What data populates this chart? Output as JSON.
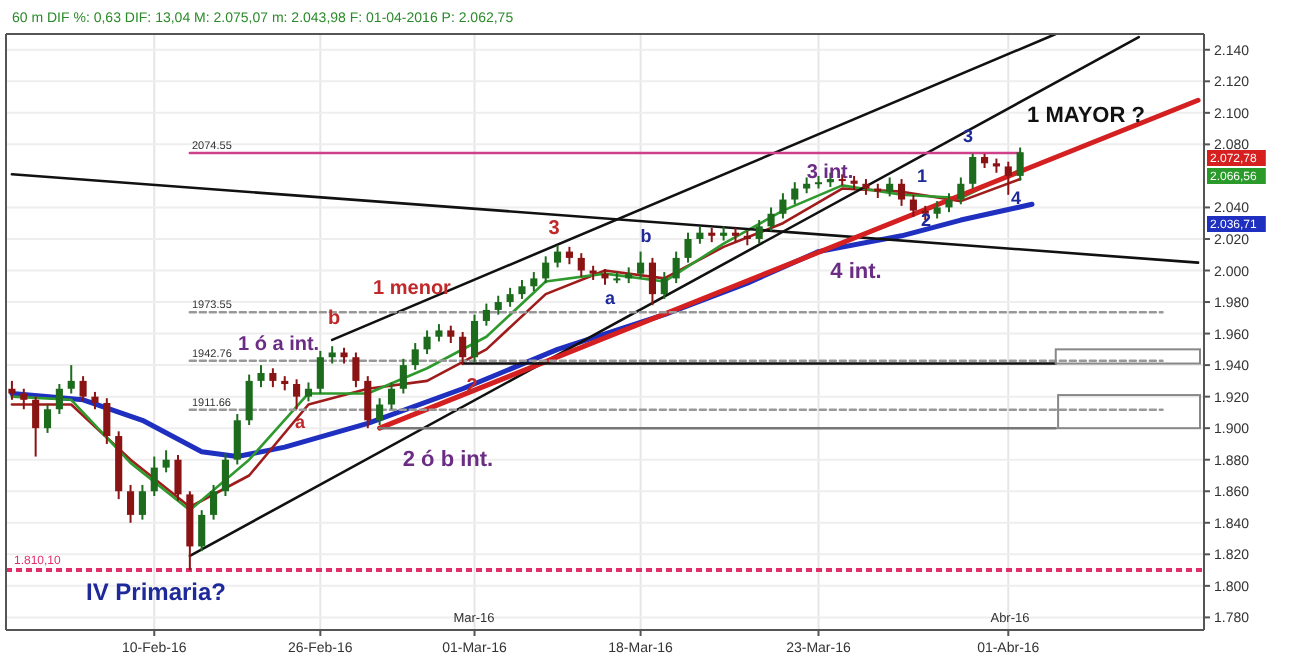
{
  "chart_data": {
    "type": "candlestick",
    "subtitle": "60 m  DIF %: 0,63  DIF: 13,04  M: 2.075,07  m: 2.043,98  F: 01-04-2016  P: 2.062,75",
    "categories": [
      null,
      null,
      null,
      null,
      null,
      null,
      null,
      null,
      null,
      null,
      null,
      null,
      "10-Feb-16",
      null,
      null,
      null,
      null,
      null,
      null,
      null,
      null,
      null,
      null,
      null,
      null,
      null,
      "26-Feb-16",
      null,
      null,
      null,
      null,
      null,
      null,
      null,
      null,
      null,
      null,
      null,
      null,
      "01-Mar-16",
      null,
      null,
      null,
      null,
      null,
      null,
      null,
      null,
      null,
      null,
      null,
      null,
      null,
      "18-Mar-16",
      null,
      null,
      null,
      null,
      null,
      null,
      null,
      null,
      null,
      null,
      null,
      null,
      null,
      null,
      "23-Mar-16",
      null,
      null,
      null,
      null,
      null,
      null,
      null,
      null,
      null,
      null,
      null,
      null,
      null,
      null,
      null,
      "01-Abr-16",
      null,
      null,
      null,
      null,
      null,
      null,
      null,
      null,
      null,
      null,
      null,
      null,
      null,
      null,
      null,
      null
    ],
    "ohlc": [
      [
        1925,
        1930,
        1918,
        1922
      ],
      [
        1922,
        1925,
        1912,
        1918
      ],
      [
        1918,
        1920,
        1882,
        1900
      ],
      [
        1900,
        1915,
        1897,
        1912
      ],
      [
        1912,
        1928,
        1909,
        1925
      ],
      [
        1925,
        1940,
        1922,
        1930
      ],
      [
        1930,
        1933,
        1917,
        1920
      ],
      [
        1920,
        1923,
        1912,
        1916
      ],
      [
        1916,
        1919,
        1890,
        1895
      ],
      [
        1895,
        1898,
        1855,
        1860
      ],
      [
        1860,
        1864,
        1840,
        1845
      ],
      [
        1845,
        1864,
        1842,
        1860
      ],
      [
        1860,
        1882,
        1857,
        1875
      ],
      [
        1875,
        1886,
        1872,
        1880
      ],
      [
        1880,
        1883,
        1854,
        1858
      ],
      [
        1858,
        1860,
        1810,
        1825
      ],
      [
        1825,
        1848,
        1822,
        1845
      ],
      [
        1845,
        1864,
        1842,
        1860
      ],
      [
        1860,
        1884,
        1857,
        1880
      ],
      [
        1880,
        1909,
        1877,
        1905
      ],
      [
        1905,
        1934,
        1902,
        1930
      ],
      [
        1930,
        1940,
        1926,
        1935
      ],
      [
        1935,
        1938,
        1926,
        1930
      ],
      [
        1930,
        1933,
        1924,
        1928
      ],
      [
        1928,
        1931,
        1912,
        1920
      ],
      [
        1920,
        1929,
        1917,
        1925
      ],
      [
        1925,
        1949,
        1922,
        1945
      ],
      [
        1945,
        1952,
        1941,
        1948
      ],
      [
        1948,
        1951,
        1941,
        1945
      ],
      [
        1945,
        1948,
        1926,
        1930
      ],
      [
        1930,
        1933,
        1900,
        1905
      ],
      [
        1905,
        1919,
        1902,
        1915
      ],
      [
        1915,
        1929,
        1912,
        1925
      ],
      [
        1925,
        1944,
        1922,
        1940
      ],
      [
        1940,
        1954,
        1937,
        1950
      ],
      [
        1950,
        1962,
        1947,
        1958
      ],
      [
        1958,
        1966,
        1955,
        1962
      ],
      [
        1962,
        1965,
        1954,
        1958
      ],
      [
        1958,
        1961,
        1940,
        1945
      ],
      [
        1945,
        1972,
        1942,
        1968
      ],
      [
        1968,
        1979,
        1965,
        1975
      ],
      [
        1975,
        1984,
        1972,
        1980
      ],
      [
        1980,
        1989,
        1977,
        1985
      ],
      [
        1985,
        1994,
        1982,
        1990
      ],
      [
        1990,
        1999,
        1987,
        1995
      ],
      [
        1995,
        2009,
        1992,
        2005
      ],
      [
        2005,
        2016,
        2002,
        2012
      ],
      [
        2012,
        2015,
        2004,
        2008
      ],
      [
        2008,
        2011,
        1996,
        2000
      ],
      [
        2000,
        2003,
        1994,
        1998
      ],
      [
        1998,
        2001,
        1991,
        1995
      ],
      [
        1995,
        1999,
        1992,
        1995
      ],
      [
        1995,
        2002,
        1992,
        1998
      ],
      [
        1998,
        2012,
        1995,
        2005
      ],
      [
        2005,
        2008,
        1978,
        1985
      ],
      [
        1985,
        1999,
        1982,
        1995
      ],
      [
        1995,
        2012,
        1992,
        2008
      ],
      [
        2008,
        2024,
        2005,
        2020
      ],
      [
        2020,
        2028,
        2017,
        2024
      ],
      [
        2024,
        2027,
        2018,
        2022
      ],
      [
        2022,
        2028,
        2019,
        2024
      ],
      [
        2024,
        2027,
        2018,
        2022
      ],
      [
        2022,
        2025,
        2016,
        2020
      ],
      [
        2020,
        2032,
        2017,
        2028
      ],
      [
        2028,
        2040,
        2025,
        2036
      ],
      [
        2036,
        2049,
        2033,
        2045
      ],
      [
        2045,
        2056,
        2042,
        2052
      ],
      [
        2052,
        2059,
        2049,
        2055
      ],
      [
        2055,
        2060,
        2052,
        2056
      ],
      [
        2056,
        2062,
        2053,
        2058
      ],
      [
        2058,
        2061,
        2054,
        2057
      ],
      [
        2057,
        2060,
        2051,
        2055
      ],
      [
        2055,
        2058,
        2048,
        2052
      ],
      [
        2052,
        2055,
        2046,
        2050
      ],
      [
        2050,
        2059,
        2047,
        2055
      ],
      [
        2055,
        2058,
        2041,
        2045
      ],
      [
        2045,
        2048,
        2034,
        2038
      ],
      [
        2038,
        2041,
        2032,
        2036
      ],
      [
        2036,
        2044,
        2033,
        2040
      ],
      [
        2040,
        2049,
        2037,
        2045
      ],
      [
        2045,
        2059,
        2042,
        2055
      ],
      [
        2055,
        2074,
        2052,
        2072
      ],
      [
        2072,
        2074,
        2065,
        2068
      ],
      [
        2068,
        2071,
        2062,
        2066
      ],
      [
        2066,
        2069,
        2048,
        2060
      ],
      [
        2060,
        2078,
        2057,
        2075
      ],
      null,
      null,
      null,
      null,
      null,
      null,
      null,
      null,
      null,
      null,
      null,
      null,
      null,
      null,
      null
    ],
    "series": [
      {
        "type": "line",
        "color": "#1f2fbf",
        "values": [
          1922,
          null,
          null,
          null,
          null,
          null,
          1918,
          null,
          null,
          null,
          null,
          1905,
          null,
          null,
          null,
          null,
          1885,
          null,
          null,
          1882,
          null,
          null,
          null,
          1888,
          null,
          null,
          null,
          null,
          null,
          null,
          1903,
          null,
          null,
          null,
          null,
          null,
          null,
          null,
          1925,
          null,
          null,
          null,
          null,
          null,
          null,
          null,
          1950,
          null,
          null,
          null,
          null,
          null,
          null,
          null,
          null,
          1972,
          null,
          null,
          null,
          null,
          null,
          null,
          1992,
          null,
          null,
          null,
          null,
          null,
          2012,
          null,
          null,
          null,
          null,
          null,
          null,
          2022,
          null,
          null,
          null,
          null,
          2032,
          null,
          null,
          null,
          null,
          null,
          2042,
          null,
          null,
          null,
          null,
          null,
          null,
          null,
          null,
          null,
          null,
          null,
          null,
          null,
          null
        ]
      },
      {
        "type": "line",
        "color": "#a01c1c",
        "values": [
          1915,
          null,
          null,
          null,
          null,
          1915,
          null,
          null,
          null,
          null,
          1880,
          null,
          null,
          null,
          null,
          1850,
          null,
          null,
          null,
          null,
          1870,
          null,
          null,
          null,
          null,
          1915,
          null,
          null,
          null,
          null,
          1925,
          null,
          null,
          null,
          null,
          1930,
          null,
          null,
          null,
          null,
          1950,
          null,
          null,
          null,
          null,
          1985,
          null,
          null,
          null,
          null,
          2000,
          null,
          null,
          null,
          null,
          1995,
          null,
          null,
          null,
          null,
          2015,
          null,
          null,
          null,
          null,
          2030,
          null,
          null,
          null,
          null,
          2052,
          null,
          null,
          null,
          null,
          2050,
          null,
          null,
          null,
          null,
          2044,
          null,
          null,
          null,
          null,
          2058,
          null,
          null,
          null,
          null,
          null,
          null,
          null,
          null,
          null,
          null,
          null,
          null,
          null,
          null,
          null
        ]
      },
      {
        "type": "line",
        "color": "#2e9a2e",
        "values": [
          1920,
          null,
          null,
          null,
          null,
          1918,
          null,
          null,
          null,
          null,
          1878,
          null,
          null,
          null,
          null,
          1848,
          null,
          null,
          null,
          null,
          1880,
          null,
          null,
          null,
          null,
          1922,
          null,
          null,
          null,
          null,
          1922,
          null,
          null,
          null,
          null,
          1938,
          null,
          null,
          null,
          null,
          1958,
          null,
          null,
          null,
          null,
          1993,
          null,
          null,
          null,
          null,
          1998,
          null,
          null,
          null,
          null,
          1993,
          null,
          null,
          null,
          null,
          2017,
          null,
          null,
          null,
          null,
          2038,
          null,
          null,
          null,
          null,
          2054,
          null,
          null,
          null,
          null,
          2048,
          null,
          null,
          null,
          null,
          2046,
          null,
          null,
          null,
          null,
          2064,
          null,
          null,
          null,
          null,
          null,
          null,
          null,
          null,
          null,
          null,
          null,
          null,
          null,
          null,
          null
        ]
      },
      {
        "type": "line",
        "color": "#111111",
        "values": [
          2061,
          null,
          null,
          null,
          null,
          null,
          null,
          null,
          null,
          null,
          null,
          null,
          null,
          null,
          null,
          null,
          null,
          null,
          null,
          null,
          null,
          null,
          null,
          null,
          null,
          null,
          null,
          null,
          null,
          null,
          null,
          null,
          null,
          null,
          null,
          null,
          null,
          null,
          null,
          null,
          null,
          null,
          null,
          null,
          null,
          null,
          null,
          null,
          null,
          null,
          null,
          null,
          null,
          null,
          null,
          null,
          null,
          null,
          null,
          null,
          null,
          null,
          null,
          null,
          null,
          null,
          null,
          null,
          null,
          null,
          null,
          null,
          null,
          null,
          null,
          null,
          null,
          null,
          null,
          null,
          null,
          null,
          null,
          null,
          null,
          null,
          null,
          null,
          null,
          null,
          null,
          null,
          null,
          null,
          null,
          null,
          null,
          null,
          null,
          null,
          2005
        ]
      },
      {
        "type": "line",
        "color": "#111111",
        "values": [
          null,
          null,
          null,
          null,
          null,
          null,
          null,
          null,
          null,
          null,
          null,
          null,
          null,
          null,
          null,
          null,
          null,
          null,
          null,
          null,
          null,
          null,
          null,
          null,
          null,
          null,
          null,
          1956,
          null,
          null,
          null,
          null,
          null,
          null,
          null,
          null,
          null,
          null,
          null,
          null,
          null,
          null,
          null,
          null,
          null,
          null,
          null,
          null,
          null,
          null,
          null,
          null,
          null,
          null,
          null,
          null,
          null,
          null,
          null,
          null,
          null,
          null,
          null,
          null,
          null,
          null,
          null,
          null,
          null,
          null,
          null,
          null,
          null,
          null,
          null,
          null,
          null,
          null,
          null,
          null,
          null,
          null,
          null,
          null,
          null,
          null,
          null,
          null,
          2150,
          null,
          null,
          null,
          null,
          null,
          null,
          null,
          null,
          null,
          null,
          null,
          null
        ]
      },
      {
        "type": "line",
        "color": "#111111",
        "values": [
          null,
          null,
          null,
          null,
          null,
          null,
          null,
          null,
          null,
          null,
          null,
          null,
          null,
          null,
          null,
          1819,
          null,
          null,
          null,
          null,
          null,
          null,
          null,
          null,
          null,
          null,
          null,
          null,
          null,
          null,
          null,
          null,
          null,
          null,
          null,
          null,
          null,
          null,
          null,
          null,
          null,
          null,
          null,
          null,
          null,
          null,
          null,
          null,
          null,
          null,
          null,
          null,
          null,
          null,
          null,
          null,
          null,
          null,
          null,
          null,
          null,
          null,
          null,
          null,
          null,
          null,
          null,
          null,
          null,
          null,
          null,
          null,
          null,
          null,
          null,
          null,
          null,
          null,
          null,
          null,
          null,
          null,
          null,
          null,
          null,
          null,
          null,
          null,
          null,
          null,
          null,
          null,
          null,
          null,
          null,
          2148,
          null,
          null,
          null,
          null,
          null
        ]
      },
      {
        "type": "line",
        "color": "#d42020",
        "values": [
          null,
          null,
          null,
          null,
          null,
          null,
          null,
          null,
          null,
          null,
          null,
          null,
          null,
          null,
          null,
          null,
          null,
          null,
          null,
          null,
          null,
          null,
          null,
          null,
          null,
          null,
          null,
          null,
          null,
          null,
          null,
          1900,
          null,
          null,
          null,
          null,
          null,
          null,
          null,
          null,
          null,
          null,
          null,
          null,
          null,
          null,
          null,
          null,
          null,
          null,
          null,
          null,
          null,
          null,
          null,
          null,
          null,
          null,
          null,
          null,
          null,
          null,
          null,
          null,
          null,
          null,
          null,
          null,
          null,
          null,
          null,
          null,
          null,
          null,
          null,
          null,
          null,
          null,
          null,
          null,
          null,
          null,
          null,
          null,
          null,
          null,
          null,
          null,
          null,
          null,
          null,
          null,
          null,
          null,
          null,
          null,
          null,
          null,
          null,
          null,
          2108
        ]
      },
      {
        "type": "line",
        "color": "#111111",
        "values": [
          null,
          null,
          null,
          null,
          null,
          null,
          null,
          null,
          null,
          null,
          null,
          null,
          null,
          null,
          null,
          null,
          null,
          null,
          null,
          null,
          null,
          null,
          null,
          null,
          null,
          null,
          null,
          null,
          null,
          null,
          null,
          null,
          null,
          null,
          null,
          null,
          null,
          null,
          1941,
          null,
          null,
          null,
          null,
          null,
          null,
          null,
          null,
          null,
          null,
          null,
          null,
          null,
          null,
          null,
          null,
          null,
          null,
          null,
          null,
          null,
          null,
          null,
          null,
          null,
          null,
          null,
          null,
          null,
          null,
          null,
          null,
          null,
          null,
          null,
          null,
          null,
          null,
          null,
          null,
          null,
          null,
          null,
          null,
          null,
          null,
          null,
          null,
          null,
          1941,
          null,
          null,
          null,
          null,
          null,
          null,
          null,
          null,
          null,
          null,
          null,
          null
        ]
      },
      {
        "type": "line",
        "color": "#777777",
        "values": [
          null,
          null,
          null,
          null,
          null,
          null,
          null,
          null,
          null,
          null,
          null,
          null,
          null,
          null,
          null,
          null,
          null,
          null,
          null,
          null,
          null,
          null,
          null,
          null,
          null,
          null,
          null,
          null,
          null,
          null,
          null,
          1900,
          null,
          null,
          null,
          null,
          null,
          null,
          null,
          null,
          null,
          null,
          null,
          null,
          null,
          null,
          null,
          null,
          null,
          null,
          null,
          null,
          null,
          null,
          null,
          null,
          null,
          null,
          null,
          null,
          null,
          null,
          null,
          null,
          null,
          null,
          null,
          null,
          null,
          null,
          null,
          null,
          null,
          null,
          null,
          null,
          null,
          null,
          null,
          null,
          null,
          null,
          null,
          null,
          null,
          null,
          null,
          null,
          1900,
          null,
          null,
          null,
          null,
          null,
          null,
          null,
          null,
          null,
          null,
          null,
          null
        ]
      },
      {
        "type": "line",
        "color": "#999999",
        "line_style": "dotted",
        "values": [
          null,
          null,
          null,
          null,
          null,
          null,
          null,
          null,
          null,
          null,
          null,
          null,
          null,
          null,
          null,
          1973.55,
          null,
          null,
          null,
          null,
          null,
          null,
          null,
          null,
          null,
          null,
          null,
          null,
          null,
          null,
          null,
          null,
          null,
          null,
          null,
          null,
          null,
          null,
          null,
          null,
          null,
          null,
          null,
          null,
          null,
          null,
          null,
          null,
          null,
          null,
          null,
          null,
          null,
          null,
          null,
          null,
          null,
          null,
          null,
          null,
          null,
          null,
          null,
          null,
          null,
          null,
          null,
          null,
          null,
          null,
          null,
          null,
          null,
          null,
          null,
          null,
          null,
          null,
          null,
          null,
          null,
          null,
          null,
          null,
          null,
          null,
          null,
          null,
          null,
          null,
          null,
          null,
          null,
          null,
          null,
          null,
          null,
          1973.55,
          null,
          null,
          null
        ]
      },
      {
        "type": "line",
        "color": "#999999",
        "line_style": "dotted",
        "values": [
          null,
          null,
          null,
          null,
          null,
          null,
          null,
          null,
          null,
          null,
          null,
          null,
          null,
          null,
          null,
          1942.76,
          null,
          null,
          null,
          null,
          null,
          null,
          null,
          null,
          null,
          null,
          null,
          null,
          null,
          null,
          null,
          null,
          null,
          null,
          null,
          null,
          null,
          null,
          null,
          null,
          null,
          null,
          null,
          null,
          null,
          null,
          null,
          null,
          null,
          null,
          null,
          null,
          null,
          null,
          null,
          null,
          null,
          null,
          null,
          null,
          null,
          null,
          null,
          null,
          null,
          null,
          null,
          null,
          null,
          null,
          null,
          null,
          null,
          null,
          null,
          null,
          null,
          null,
          null,
          null,
          null,
          null,
          null,
          null,
          null,
          null,
          null,
          null,
          null,
          null,
          null,
          null,
          null,
          null,
          null,
          null,
          null,
          1942.76,
          null,
          null,
          null
        ]
      },
      {
        "type": "line",
        "color": "#999999",
        "line_style": "dotted",
        "values": [
          null,
          null,
          null,
          null,
          null,
          null,
          null,
          null,
          null,
          null,
          null,
          null,
          null,
          null,
          null,
          1911.66,
          null,
          null,
          null,
          null,
          null,
          null,
          null,
          null,
          null,
          null,
          null,
          null,
          null,
          null,
          null,
          null,
          null,
          null,
          null,
          null,
          null,
          null,
          null,
          null,
          null,
          null,
          null,
          null,
          null,
          null,
          null,
          null,
          null,
          null,
          null,
          null,
          null,
          null,
          null,
          null,
          null,
          null,
          null,
          null,
          null,
          null,
          null,
          null,
          null,
          null,
          null,
          null,
          null,
          null,
          null,
          null,
          null,
          null,
          null,
          null,
          null,
          null,
          null,
          null,
          null,
          null,
          null,
          null,
          null,
          null,
          null,
          null,
          null,
          null,
          null,
          null,
          null,
          null,
          null,
          null,
          null,
          1911.66,
          null,
          null,
          null
        ]
      },
      {
        "type": "line",
        "color": "#d0408a",
        "values": [
          null,
          null,
          null,
          null,
          null,
          null,
          null,
          null,
          null,
          null,
          null,
          null,
          null,
          null,
          null,
          2074.55,
          null,
          null,
          null,
          null,
          null,
          null,
          null,
          null,
          null,
          null,
          null,
          null,
          null,
          null,
          null,
          null,
          null,
          null,
          null,
          null,
          null,
          null,
          null,
          null,
          null,
          null,
          null,
          null,
          null,
          null,
          null,
          null,
          null,
          null,
          null,
          null,
          null,
          null,
          null,
          null,
          null,
          null,
          null,
          null,
          null,
          null,
          null,
          null,
          null,
          null,
          null,
          null,
          null,
          null,
          null,
          null,
          null,
          null,
          null,
          null,
          null,
          null,
          null,
          null,
          null,
          null,
          null,
          null,
          null,
          2074.55,
          null,
          null,
          null,
          null,
          null,
          null,
          null,
          null,
          null,
          null,
          null,
          null,
          null,
          null,
          null
        ]
      }
    ],
    "ref_lines": [
      {
        "axis": "y",
        "value": 1810.1,
        "label": "1.810,10",
        "color": "#e0306a",
        "line_style": "dotted"
      }
    ],
    "annotations": [
      {
        "text": "2074.55",
        "y": 2074.55
      },
      {
        "text": "1973.55",
        "y": 1973.55
      },
      {
        "text": "1942.76",
        "y": 1942.76
      },
      {
        "text": "1911.66",
        "y": 1911.66
      },
      "1 ó a int.",
      "b",
      "a",
      "1 menor",
      "2",
      "2 ó b int.",
      "3",
      "b",
      "a",
      "3 int.",
      "1",
      "2",
      "3",
      "4",
      "4 int.",
      "1 MAYOR ?",
      "IV Primaria?",
      "2.072,78",
      "2.066,56",
      "2.036,71",
      "Mar-16",
      "Abr-16"
    ],
    "ylim": [
      1772,
      2150
    ],
    "yticks": [
      {
        "value": 1780,
        "label": "1.780"
      },
      {
        "value": 1800,
        "label": "1.800"
      },
      {
        "value": 1820,
        "label": "1.820"
      },
      {
        "value": 1840,
        "label": "1.840"
      },
      {
        "value": 1860,
        "label": "1.860"
      },
      {
        "value": 1880,
        "label": "1.880"
      },
      {
        "value": 1900,
        "label": "1.900"
      },
      {
        "value": 1920,
        "label": "1.920"
      },
      {
        "value": 1940,
        "label": "1.940"
      },
      {
        "value": 1960,
        "label": "1.960"
      },
      {
        "value": 1980,
        "label": "1.980"
      },
      {
        "value": 2000,
        "label": "2.000"
      },
      {
        "value": 2020,
        "label": "2.020"
      },
      {
        "value": 2040,
        "label": "2.040"
      },
      {
        "value": 2080,
        "label": "2.080"
      },
      {
        "value": 2100,
        "label": "2.100"
      },
      {
        "value": 2120,
        "label": "2.120"
      },
      {
        "value": 2140,
        "label": "2.140"
      }
    ],
    "grid": true
  }
}
